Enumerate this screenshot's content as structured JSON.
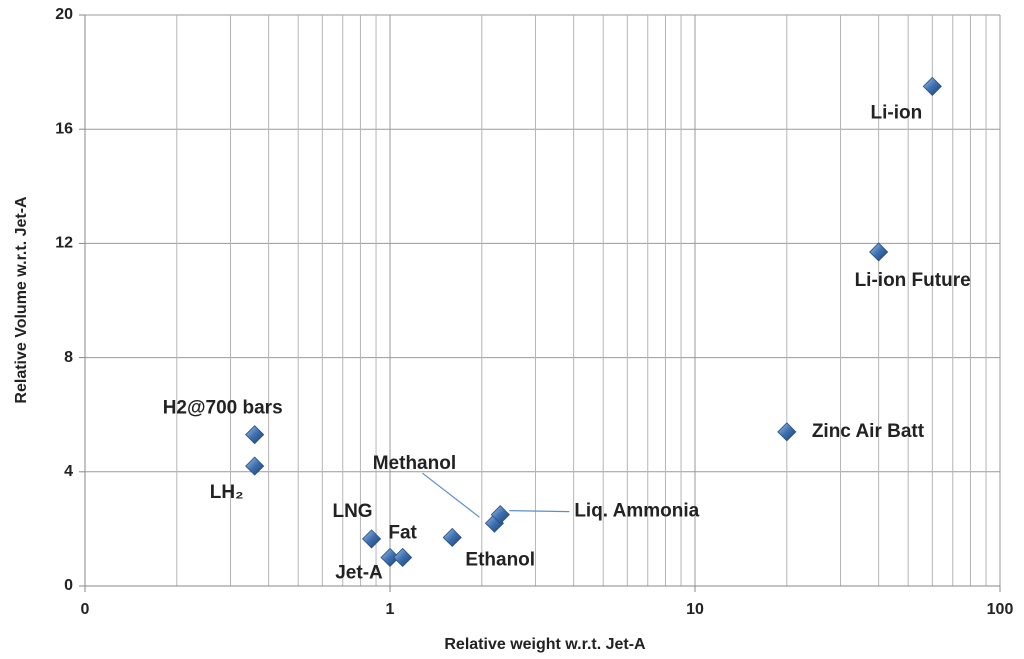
{
  "chart_data": {
    "type": "scatter",
    "xlabel": "Relative weight w.r.t. Jet-A",
    "ylabel": "Relative  Volume  w.r.t. Jet-A",
    "xscale": "log",
    "xlim": [
      0.1,
      100
    ],
    "xticks": [
      {
        "value": 0.1,
        "label": "0"
      },
      1,
      10,
      100
    ],
    "ylim": [
      0,
      20
    ],
    "yticks": [
      0,
      4,
      8,
      12,
      16,
      20
    ],
    "grid": true,
    "color": "#3d6fb0",
    "labels": [
      "Li-ion",
      "Li-ion Future",
      "Zinc Air Batt",
      "H2@700 bars",
      "LH₂",
      "LNG",
      "Jet-A",
      "Fat",
      "Ethanol",
      "Methanol",
      "Liq. Ammonia"
    ],
    "x": [
      60,
      40,
      20,
      0.36,
      0.36,
      0.87,
      1,
      1.1,
      1.6,
      2.2,
      2.3
    ],
    "y": [
      17.5,
      11.7,
      5.4,
      5.3,
      4.2,
      1.65,
      1,
      1,
      1.7,
      2.2,
      2.5
    ]
  }
}
